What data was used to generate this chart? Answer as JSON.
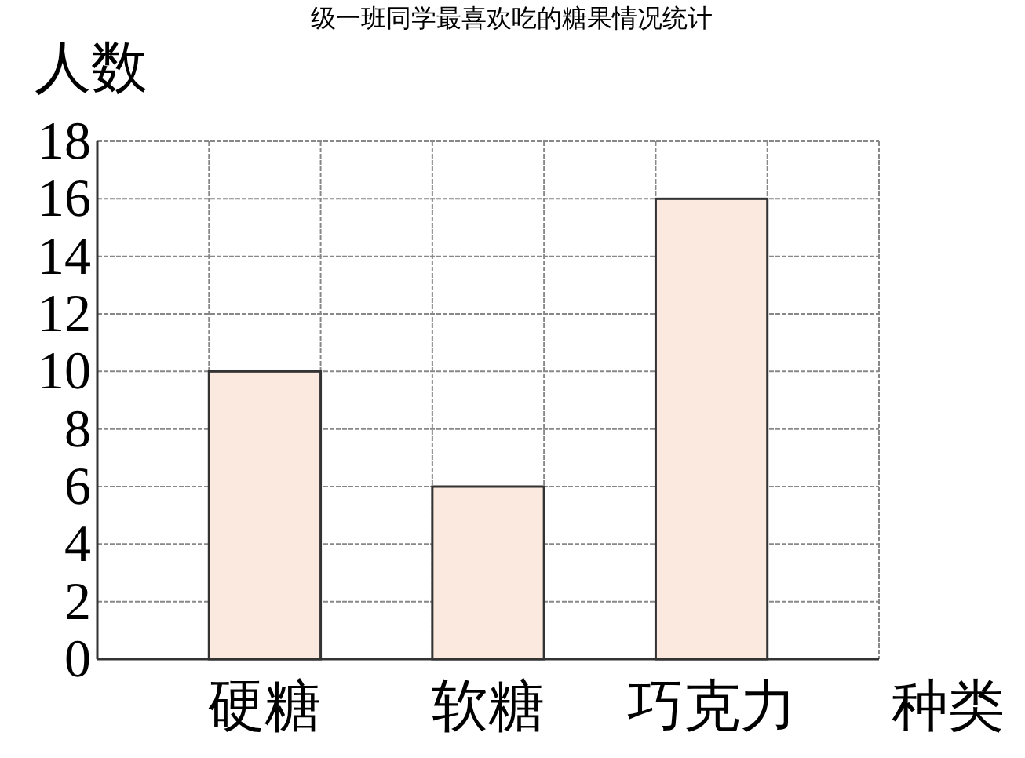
{
  "chart_data": {
    "type": "bar",
    "title": "级一班同学最喜欢吃的糖果情况统计",
    "ylabel": "人数",
    "xlabel": "种类",
    "categories": [
      "硬糖",
      "软糖",
      "巧克力"
    ],
    "values": [
      10,
      6,
      16
    ],
    "color": "#fbe8df",
    "ylim": [
      0,
      18
    ],
    "yticks": [
      0,
      2,
      4,
      6,
      8,
      10,
      12,
      14,
      16,
      18
    ],
    "grid": true
  }
}
